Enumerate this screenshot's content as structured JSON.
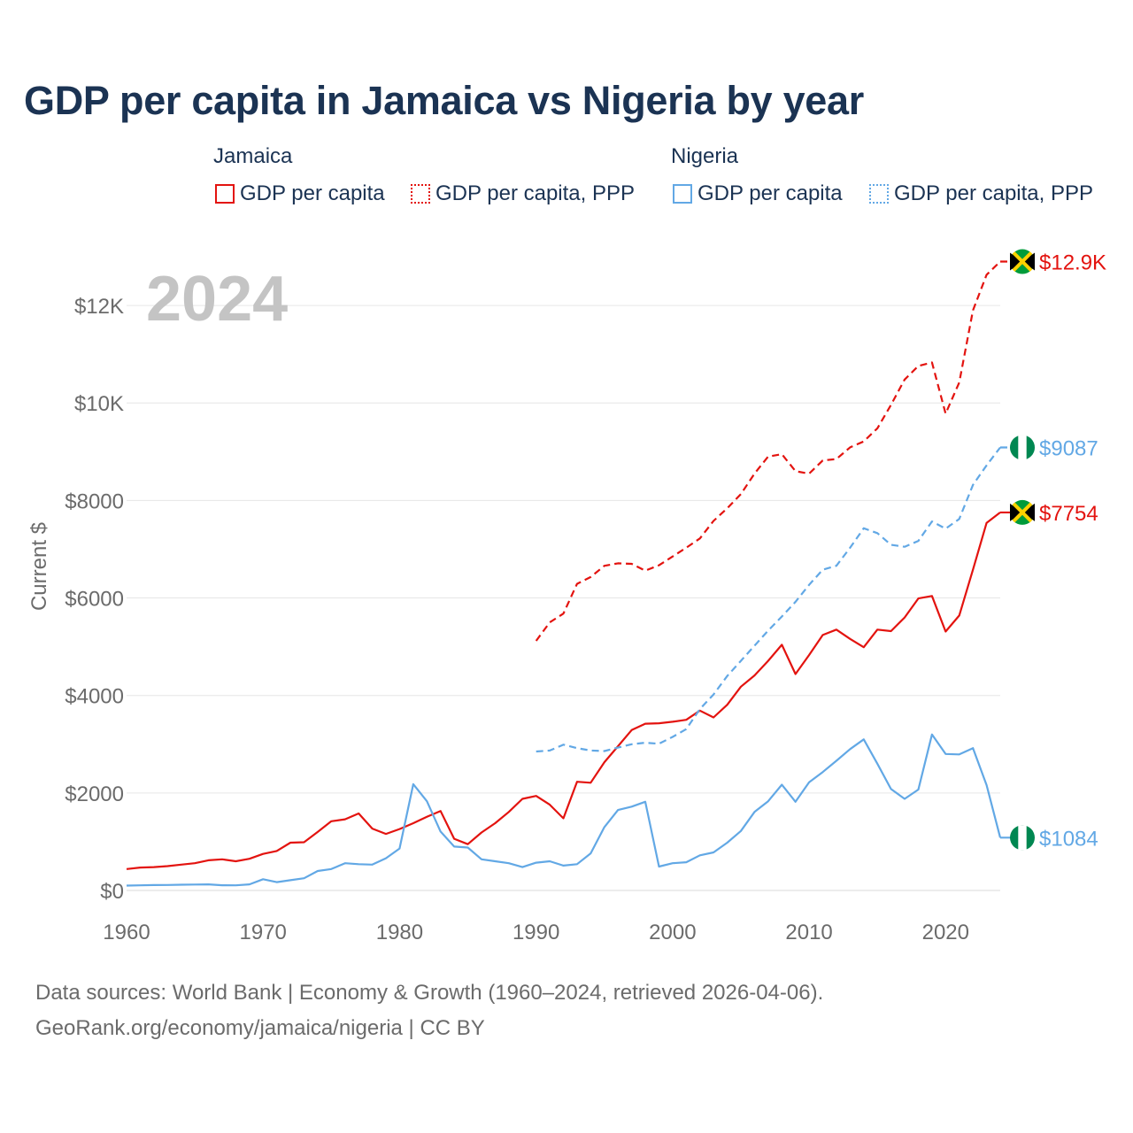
{
  "title": "GDP per capita in Jamaica vs Nigeria by year",
  "legend": {
    "jamaica_title": "Jamaica",
    "nigeria_title": "Nigeria",
    "jamaica_gdp": "GDP per capita",
    "jamaica_ppp": "GDP per capita, PPP",
    "nigeria_gdp": "GDP per capita",
    "nigeria_ppp": "GDP per capita, PPP"
  },
  "source": {
    "line1": "Data sources: World Bank | Economy & Growth (1960–2024, retrieved 2026-04-06).",
    "line2": "GeoRank.org/economy/jamaica/nigeria | CC BY"
  },
  "colors": {
    "jamaica": "#e3130f",
    "nigeria": "#62a8e5",
    "text": "#1b3353",
    "axis": "#6b6b6b",
    "grid": "#e6e6e6",
    "year": "#c4c4c4"
  },
  "chart_data": {
    "type": "line",
    "title": "GDP per capita in Jamaica vs Nigeria by year",
    "year_label": "2024",
    "ylabel": "Current $",
    "xlabel": "",
    "xlim": [
      1960,
      2024
    ],
    "ylim": [
      0,
      13000
    ],
    "x_ticks": [
      1960,
      1970,
      1980,
      1990,
      2000,
      2010,
      2020
    ],
    "x_tick_labels": [
      "1960",
      "1970",
      "1980",
      "1990",
      "2000",
      "2010",
      "2020"
    ],
    "y_ticks": [
      0,
      2000,
      4000,
      6000,
      8000,
      10000,
      12000
    ],
    "y_tick_labels": [
      "$0",
      "$2000",
      "$4000",
      "$6000",
      "$8000",
      "$10K",
      "$12K"
    ],
    "grid": true,
    "end_labels": {
      "jamaica_ppp": "$12.9K",
      "jamaica_gdp": "$7754",
      "nigeria_ppp": "$9087",
      "nigeria_gdp": "$1084"
    },
    "series": [
      {
        "name": "Jamaica GDP per capita",
        "country": "jamaica",
        "style": "solid",
        "start": 1960,
        "values": [
          440,
          470,
          480,
          500,
          530,
          560,
          620,
          640,
          600,
          650,
          750,
          810,
          980,
          990,
          1200,
          1420,
          1460,
          1580,
          1270,
          1160,
          1260,
          1380,
          1510,
          1630,
          1060,
          950,
          1190,
          1380,
          1610,
          1880,
          1940,
          1760,
          1480,
          2230,
          2210,
          2630,
          2960,
          3290,
          3420,
          3430,
          3460,
          3500,
          3690,
          3550,
          3810,
          4180,
          4410,
          4710,
          5040,
          4440,
          4830,
          5240,
          5350,
          5160,
          4990,
          5350,
          5320,
          5600,
          5990,
          6040,
          5310,
          5640,
          6580,
          7540,
          7754
        ]
      },
      {
        "name": "Jamaica GDP per capita, PPP",
        "country": "jamaica",
        "style": "dashed",
        "start": 1990,
        "values": [
          5120,
          5500,
          5680,
          6290,
          6430,
          6660,
          6710,
          6700,
          6560,
          6670,
          6850,
          7030,
          7220,
          7580,
          7840,
          8130,
          8550,
          8900,
          8950,
          8600,
          8550,
          8820,
          8850,
          9090,
          9210,
          9480,
          9960,
          10480,
          10760,
          10830,
          9780,
          10420,
          11900,
          12630,
          12900
        ]
      },
      {
        "name": "Nigeria GDP per capita",
        "country": "nigeria",
        "style": "solid",
        "start": 1960,
        "values": [
          100,
          105,
          110,
          112,
          118,
          122,
          126,
          108,
          105,
          125,
          230,
          170,
          210,
          250,
          400,
          440,
          560,
          540,
          530,
          660,
          860,
          2180,
          1830,
          1210,
          900,
          880,
          640,
          600,
          560,
          480,
          570,
          600,
          510,
          540,
          760,
          1300,
          1650,
          1720,
          1820,
          490,
          560,
          580,
          720,
          780,
          980,
          1220,
          1610,
          1830,
          2170,
          1820,
          2220,
          2430,
          2660,
          2900,
          3100,
          2600,
          2080,
          1880,
          2070,
          3200,
          2800,
          2790,
          2920,
          2160,
          1084
        ]
      },
      {
        "name": "Nigeria GDP per capita, PPP",
        "country": "nigeria",
        "style": "dashed",
        "start": 1990,
        "values": [
          2850,
          2870,
          2990,
          2920,
          2870,
          2860,
          2930,
          3000,
          3030,
          3010,
          3150,
          3310,
          3720,
          4020,
          4400,
          4710,
          5020,
          5330,
          5620,
          5920,
          6270,
          6580,
          6660,
          7030,
          7430,
          7330,
          7090,
          7050,
          7170,
          7570,
          7420,
          7620,
          8320,
          8720,
          9087
        ]
      }
    ]
  }
}
